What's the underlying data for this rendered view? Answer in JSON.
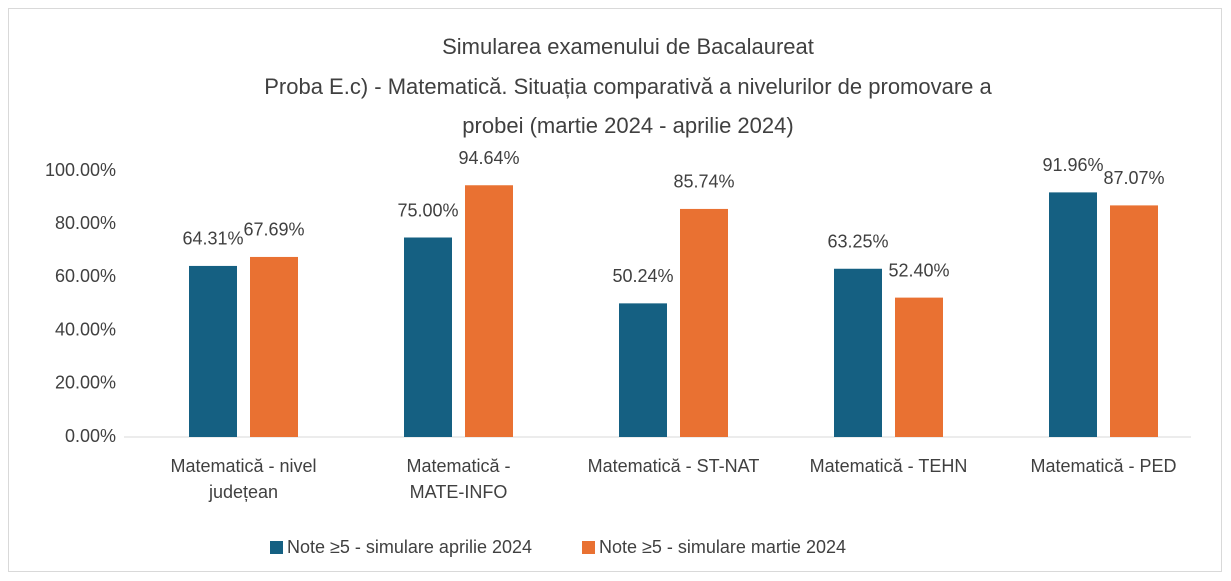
{
  "chart_data": {
    "type": "bar",
    "title": [
      "Simularea examenului de Bacalaureat",
      "Proba E.c) - Matematică. Situația comparativă a nivelurilor de promovare a",
      "probei (martie 2024 - aprilie 2024)"
    ],
    "categories": [
      "Matematică - nivel județean",
      "Matematică - MATE-INFO",
      "Matematică - ST-NAT",
      "Matematică - TEHN",
      "Matematică - PED"
    ],
    "series": [
      {
        "name": "Note ≥5 - simulare aprilie 2024",
        "color": "#156082",
        "values": [
          64.31,
          75.0,
          50.24,
          63.25,
          91.96
        ],
        "value_labels": [
          "64.31%",
          "75.00%",
          "50.24%",
          "63.25%",
          "91.96%"
        ]
      },
      {
        "name": "Note ≥5 - simulare martie 2024",
        "color": "#e97132",
        "values": [
          67.69,
          94.64,
          85.74,
          52.4,
          87.07
        ],
        "value_labels": [
          "67.69%",
          "94.64%",
          "85.74%",
          "52.40%",
          "87.07%"
        ]
      }
    ],
    "ylim": [
      0,
      100
    ],
    "yticks": [
      {
        "value": 0,
        "label": "0.00%"
      },
      {
        "value": 20,
        "label": "20.00%"
      },
      {
        "value": 40,
        "label": "40.00%"
      },
      {
        "value": 60,
        "label": "60.00%"
      },
      {
        "value": 80,
        "label": "80.00%"
      },
      {
        "value": 100,
        "label": "100.00%"
      }
    ],
    "grid": false,
    "legend": "bottom"
  }
}
